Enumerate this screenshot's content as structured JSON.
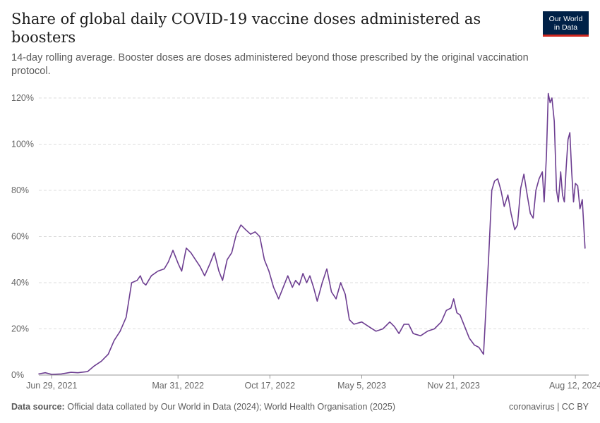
{
  "header": {
    "title": "Share of global daily COVID-19 vaccine doses administered as boosters",
    "subtitle": "14-day rolling average. Booster doses are doses administered beyond those prescribed by the original vaccination protocol."
  },
  "logo": {
    "line1": "Our World",
    "line2": "in Data"
  },
  "footer": {
    "source_label": "Data source:",
    "source_text": "Official data collated by Our World in Data (2024); World Health Organisation (2025)",
    "license": "coronavirus | CC BY"
  },
  "colors": {
    "line": "#6d3e91",
    "grid": "#dddddd",
    "axis": "#666666"
  },
  "chart_data": {
    "type": "line",
    "title": "Share of global daily COVID-19 vaccine doses administered as boosters",
    "y_unit": "%",
    "ylim": [
      0,
      120
    ],
    "y_ticks": [
      {
        "value": 0,
        "label": "0%"
      },
      {
        "value": 20,
        "label": "20%"
      },
      {
        "value": 40,
        "label": "40%"
      },
      {
        "value": 60,
        "label": "60%"
      },
      {
        "value": 80,
        "label": "80%"
      },
      {
        "value": 100,
        "label": "100%"
      },
      {
        "value": 120,
        "label": "120%"
      }
    ],
    "xlim": [
      "2021-06-01",
      "2024-09-10"
    ],
    "x_ticks": [
      {
        "value": "2021-06-29",
        "label": "Jun 29, 2021"
      },
      {
        "value": "2022-03-31",
        "label": "Mar 31, 2022"
      },
      {
        "value": "2022-10-17",
        "label": "Oct 17, 2022"
      },
      {
        "value": "2023-05-05",
        "label": "May 5, 2023"
      },
      {
        "value": "2023-11-21",
        "label": "Nov 21, 2023"
      },
      {
        "value": "2024-08-12",
        "label": "Aug 12, 2024"
      }
    ],
    "grid": true,
    "series": [
      {
        "values": [
          {
            "x": "2021-06-01",
            "y": 0.5
          },
          {
            "x": "2021-06-15",
            "y": 1.0
          },
          {
            "x": "2021-06-29",
            "y": 0.3
          },
          {
            "x": "2021-07-20",
            "y": 0.5
          },
          {
            "x": "2021-08-10",
            "y": 1.2
          },
          {
            "x": "2021-08-25",
            "y": 1.0
          },
          {
            "x": "2021-09-15",
            "y": 1.5
          },
          {
            "x": "2021-09-30",
            "y": 4
          },
          {
            "x": "2021-10-15",
            "y": 6
          },
          {
            "x": "2021-10-30",
            "y": 9
          },
          {
            "x": "2021-11-12",
            "y": 15
          },
          {
            "x": "2021-11-25",
            "y": 19
          },
          {
            "x": "2021-12-08",
            "y": 25
          },
          {
            "x": "2021-12-20",
            "y": 40
          },
          {
            "x": "2022-01-01",
            "y": 41
          },
          {
            "x": "2022-01-08",
            "y": 43
          },
          {
            "x": "2022-01-14",
            "y": 40
          },
          {
            "x": "2022-01-20",
            "y": 39
          },
          {
            "x": "2022-02-01",
            "y": 43
          },
          {
            "x": "2022-02-15",
            "y": 45
          },
          {
            "x": "2022-03-01",
            "y": 46
          },
          {
            "x": "2022-03-10",
            "y": 49
          },
          {
            "x": "2022-03-20",
            "y": 54
          },
          {
            "x": "2022-04-01",
            "y": 48
          },
          {
            "x": "2022-04-08",
            "y": 45
          },
          {
            "x": "2022-04-18",
            "y": 55
          },
          {
            "x": "2022-04-28",
            "y": 53
          },
          {
            "x": "2022-05-08",
            "y": 50
          },
          {
            "x": "2022-05-18",
            "y": 47
          },
          {
            "x": "2022-05-28",
            "y": 43
          },
          {
            "x": "2022-06-08",
            "y": 48
          },
          {
            "x": "2022-06-18",
            "y": 53
          },
          {
            "x": "2022-06-28",
            "y": 45
          },
          {
            "x": "2022-07-06",
            "y": 41
          },
          {
            "x": "2022-07-16",
            "y": 50
          },
          {
            "x": "2022-07-26",
            "y": 53
          },
          {
            "x": "2022-08-05",
            "y": 61
          },
          {
            "x": "2022-08-15",
            "y": 65
          },
          {
            "x": "2022-08-25",
            "y": 63
          },
          {
            "x": "2022-09-05",
            "y": 61
          },
          {
            "x": "2022-09-15",
            "y": 62
          },
          {
            "x": "2022-09-25",
            "y": 60
          },
          {
            "x": "2022-10-05",
            "y": 50
          },
          {
            "x": "2022-10-15",
            "y": 45
          },
          {
            "x": "2022-10-25",
            "y": 38
          },
          {
            "x": "2022-11-05",
            "y": 33
          },
          {
            "x": "2022-11-15",
            "y": 38
          },
          {
            "x": "2022-11-25",
            "y": 43
          },
          {
            "x": "2022-12-05",
            "y": 38
          },
          {
            "x": "2022-12-12",
            "y": 41
          },
          {
            "x": "2022-12-20",
            "y": 39
          },
          {
            "x": "2022-12-28",
            "y": 44
          },
          {
            "x": "2023-01-05",
            "y": 40
          },
          {
            "x": "2023-01-12",
            "y": 43
          },
          {
            "x": "2023-01-20",
            "y": 38
          },
          {
            "x": "2023-01-28",
            "y": 32
          },
          {
            "x": "2023-02-08",
            "y": 40
          },
          {
            "x": "2023-02-18",
            "y": 46
          },
          {
            "x": "2023-02-28",
            "y": 36
          },
          {
            "x": "2023-03-10",
            "y": 33
          },
          {
            "x": "2023-03-20",
            "y": 40
          },
          {
            "x": "2023-03-30",
            "y": 35
          },
          {
            "x": "2023-04-08",
            "y": 24
          },
          {
            "x": "2023-04-18",
            "y": 22
          },
          {
            "x": "2023-05-05",
            "y": 23
          },
          {
            "x": "2023-05-20",
            "y": 21
          },
          {
            "x": "2023-06-05",
            "y": 19
          },
          {
            "x": "2023-06-20",
            "y": 20
          },
          {
            "x": "2023-07-05",
            "y": 23
          },
          {
            "x": "2023-07-15",
            "y": 21
          },
          {
            "x": "2023-07-25",
            "y": 18
          },
          {
            "x": "2023-08-05",
            "y": 22
          },
          {
            "x": "2023-08-15",
            "y": 22
          },
          {
            "x": "2023-08-25",
            "y": 18
          },
          {
            "x": "2023-09-10",
            "y": 17
          },
          {
            "x": "2023-09-25",
            "y": 19
          },
          {
            "x": "2023-10-10",
            "y": 20
          },
          {
            "x": "2023-10-25",
            "y": 23
          },
          {
            "x": "2023-11-05",
            "y": 28
          },
          {
            "x": "2023-11-15",
            "y": 29
          },
          {
            "x": "2023-11-21",
            "y": 33
          },
          {
            "x": "2023-11-28",
            "y": 27
          },
          {
            "x": "2023-12-05",
            "y": 26
          },
          {
            "x": "2023-12-15",
            "y": 21
          },
          {
            "x": "2023-12-25",
            "y": 16
          },
          {
            "x": "2024-01-05",
            "y": 13
          },
          {
            "x": "2024-01-15",
            "y": 12
          },
          {
            "x": "2024-01-25",
            "y": 9
          },
          {
            "x": "2024-02-05",
            "y": 50
          },
          {
            "x": "2024-02-12",
            "y": 80
          },
          {
            "x": "2024-02-18",
            "y": 84
          },
          {
            "x": "2024-02-25",
            "y": 85
          },
          {
            "x": "2024-03-03",
            "y": 80
          },
          {
            "x": "2024-03-10",
            "y": 73
          },
          {
            "x": "2024-03-18",
            "y": 78
          },
          {
            "x": "2024-03-25",
            "y": 70
          },
          {
            "x": "2024-04-02",
            "y": 63
          },
          {
            "x": "2024-04-08",
            "y": 65
          },
          {
            "x": "2024-04-15",
            "y": 81
          },
          {
            "x": "2024-04-22",
            "y": 87
          },
          {
            "x": "2024-04-30",
            "y": 77
          },
          {
            "x": "2024-05-06",
            "y": 70
          },
          {
            "x": "2024-05-12",
            "y": 68
          },
          {
            "x": "2024-05-18",
            "y": 80
          },
          {
            "x": "2024-05-25",
            "y": 85
          },
          {
            "x": "2024-06-01",
            "y": 88
          },
          {
            "x": "2024-06-05",
            "y": 75
          },
          {
            "x": "2024-06-10",
            "y": 95
          },
          {
            "x": "2024-06-14",
            "y": 122
          },
          {
            "x": "2024-06-18",
            "y": 118
          },
          {
            "x": "2024-06-22",
            "y": 120
          },
          {
            "x": "2024-06-27",
            "y": 110
          },
          {
            "x": "2024-07-02",
            "y": 80
          },
          {
            "x": "2024-07-06",
            "y": 75
          },
          {
            "x": "2024-07-11",
            "y": 88
          },
          {
            "x": "2024-07-15",
            "y": 78
          },
          {
            "x": "2024-07-19",
            "y": 75
          },
          {
            "x": "2024-07-23",
            "y": 90
          },
          {
            "x": "2024-07-27",
            "y": 102
          },
          {
            "x": "2024-07-31",
            "y": 105
          },
          {
            "x": "2024-08-04",
            "y": 88
          },
          {
            "x": "2024-08-08",
            "y": 75
          },
          {
            "x": "2024-08-12",
            "y": 83
          },
          {
            "x": "2024-08-17",
            "y": 82
          },
          {
            "x": "2024-08-22",
            "y": 72
          },
          {
            "x": "2024-08-27",
            "y": 76
          },
          {
            "x": "2024-09-02",
            "y": 55
          }
        ]
      }
    ]
  }
}
